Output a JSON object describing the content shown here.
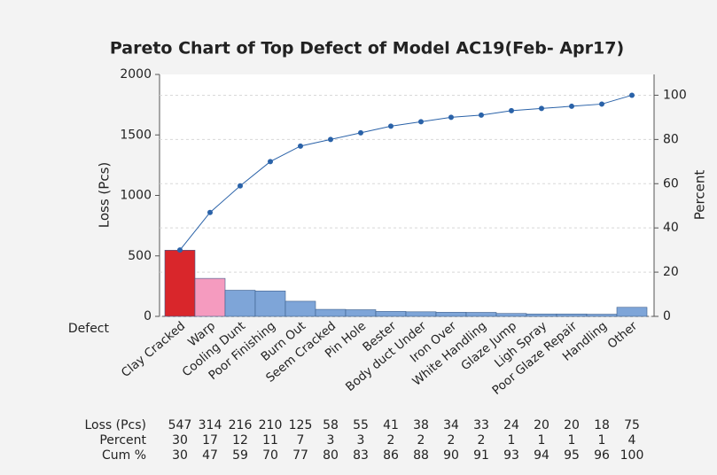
{
  "chart_data": {
    "type": "pareto",
    "title": "Pareto Chart of Top Defect of Model AC19(Feb- Apr17)",
    "x_label": "Defect",
    "y_label": "Loss (Pcs)",
    "y2_label": "Percent",
    "categories": [
      "Clay Cracked",
      "Warp",
      "Cooling Dunt",
      "Poor Finishing",
      "Burn Out",
      "Seem Cracked",
      "Pin Hole",
      "Bester",
      "Body duct Under",
      "Iron Over",
      "White Handling",
      "Glaze Jump",
      "Ligh Spray",
      "Poor Glaze Repair",
      "Handling",
      "Other"
    ],
    "series": [
      {
        "values": [
          547,
          314,
          216,
          210,
          125,
          58,
          55,
          41,
          38,
          34,
          33,
          24,
          20,
          20,
          18,
          75
        ],
        "colors": [
          "#d9262b",
          "#f59bbf",
          "#7ea5d8",
          "#7ea5d8",
          "#7ea5d8",
          "#7ea5d8",
          "#7ea5d8",
          "#7ea5d8",
          "#7ea5d8",
          "#7ea5d8",
          "#7ea5d8",
          "#7ea5d8",
          "#7ea5d8",
          "#7ea5d8",
          "#7ea5d8",
          "#7ea5d8"
        ]
      },
      {
        "values": [
          30,
          47,
          59,
          70,
          77,
          80,
          83,
          86,
          88,
          90,
          91,
          93,
          94,
          95,
          96,
          100
        ],
        "axis": "y2",
        "color": "#2a62a8"
      }
    ],
    "percent": [
      30,
      17,
      12,
      11,
      7,
      3,
      3,
      2,
      2,
      2,
      2,
      1,
      1,
      1,
      1,
      4
    ],
    "table_row_labels": [
      "Loss (Pcs)",
      "Percent",
      "Cum %"
    ],
    "ylim": [
      0,
      2000
    ],
    "yticks": [
      0,
      500,
      1000,
      1500,
      2000
    ],
    "y2lim": [
      0,
      109.4
    ],
    "y2ticks": [
      0,
      20,
      40,
      60,
      80,
      100
    ],
    "grid": true
  }
}
